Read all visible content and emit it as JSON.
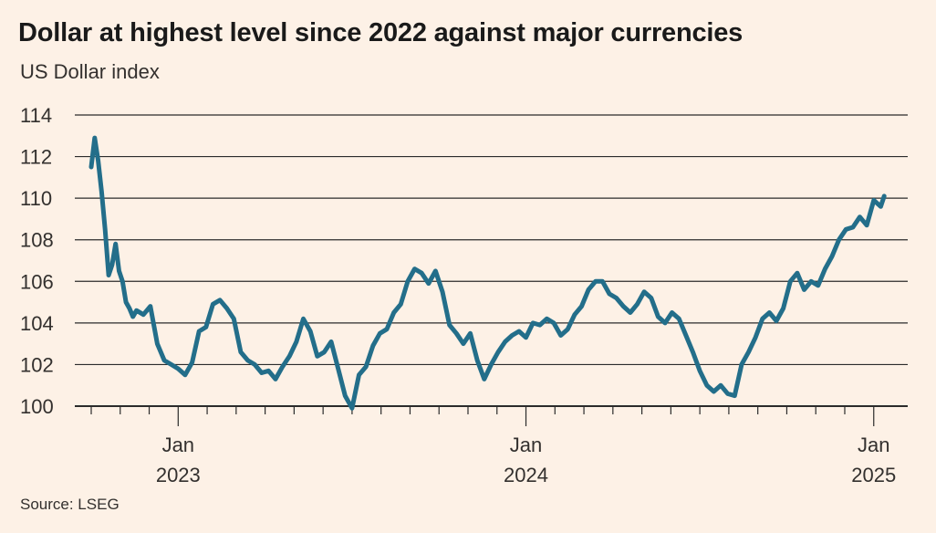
{
  "header": {
    "title": "Dollar at highest level since 2022 against major currencies",
    "subtitle": "US Dollar index"
  },
  "footer": {
    "source": "Source: LSEG"
  },
  "colors": {
    "line": "#236e8a",
    "grid": "#2b2b2b",
    "background": "#fdf1e6",
    "text": "#33302e"
  },
  "chart_data": {
    "type": "line",
    "title": "Dollar at highest level since 2022 against major currencies",
    "subtitle": "US Dollar index",
    "xlabel": "",
    "ylabel": "US Dollar index",
    "ylim": [
      100,
      114
    ],
    "yticks": [
      100,
      102,
      104,
      106,
      108,
      110,
      112,
      114
    ],
    "ytick_labels": [
      "100",
      "102",
      "104",
      "106",
      "108",
      "110",
      "112",
      "114"
    ],
    "xlim": [
      2022.75,
      2025.04
    ],
    "xticks_major": [
      {
        "x": 2023.0,
        "month": "Jan",
        "year": "2023"
      },
      {
        "x": 2024.0,
        "month": "Jan",
        "year": "2024"
      },
      {
        "x": 2025.0,
        "month": "Jan",
        "year": "2025"
      }
    ],
    "grid": true,
    "legend": "none",
    "series": [
      {
        "name": "US Dollar index",
        "x": [
          2022.75,
          2022.76,
          2022.77,
          2022.78,
          2022.79,
          2022.8,
          2022.81,
          2022.82,
          2022.83,
          2022.84,
          2022.85,
          2022.86,
          2022.87,
          2022.88,
          2022.9,
          2022.92,
          2022.94,
          2022.96,
          2022.98,
          2023.0,
          2023.02,
          2023.04,
          2023.06,
          2023.08,
          2023.1,
          2023.12,
          2023.14,
          2023.16,
          2023.18,
          2023.2,
          2023.22,
          2023.24,
          2023.26,
          2023.28,
          2023.3,
          2023.32,
          2023.34,
          2023.36,
          2023.38,
          2023.4,
          2023.42,
          2023.44,
          2023.46,
          2023.48,
          2023.5,
          2023.52,
          2023.54,
          2023.56,
          2023.58,
          2023.6,
          2023.62,
          2023.64,
          2023.66,
          2023.68,
          2023.7,
          2023.72,
          2023.74,
          2023.76,
          2023.78,
          2023.8,
          2023.82,
          2023.84,
          2023.86,
          2023.88,
          2023.9,
          2023.92,
          2023.94,
          2023.96,
          2023.98,
          2024.0,
          2024.02,
          2024.04,
          2024.06,
          2024.08,
          2024.1,
          2024.12,
          2024.14,
          2024.16,
          2024.18,
          2024.2,
          2024.22,
          2024.24,
          2024.26,
          2024.28,
          2024.3,
          2024.32,
          2024.34,
          2024.36,
          2024.38,
          2024.4,
          2024.42,
          2024.44,
          2024.46,
          2024.48,
          2024.5,
          2024.52,
          2024.54,
          2024.56,
          2024.58,
          2024.6,
          2024.62,
          2024.64,
          2024.66,
          2024.68,
          2024.7,
          2024.72,
          2024.74,
          2024.76,
          2024.78,
          2024.8,
          2024.82,
          2024.84,
          2024.86,
          2024.88,
          2024.9,
          2024.92,
          2024.94,
          2024.96,
          2024.98,
          2025.0,
          2025.02,
          2025.03
        ],
        "values": [
          111.5,
          112.9,
          111.8,
          110.3,
          108.5,
          106.3,
          106.8,
          107.8,
          106.5,
          106.0,
          105.0,
          104.7,
          104.3,
          104.6,
          104.4,
          104.8,
          103.0,
          102.2,
          102.0,
          101.8,
          101.5,
          102.1,
          103.6,
          103.8,
          104.9,
          105.1,
          104.7,
          104.2,
          102.6,
          102.2,
          102.0,
          101.6,
          101.7,
          101.3,
          101.9,
          102.4,
          103.1,
          104.2,
          103.6,
          102.4,
          102.6,
          103.1,
          101.8,
          100.5,
          99.9,
          101.5,
          101.9,
          102.9,
          103.5,
          103.7,
          104.5,
          104.9,
          106.0,
          106.6,
          106.4,
          105.9,
          106.5,
          105.5,
          103.9,
          103.5,
          103.0,
          103.5,
          102.2,
          101.3,
          102.0,
          102.6,
          103.1,
          103.4,
          103.6,
          103.3,
          104.0,
          103.9,
          104.2,
          104.0,
          103.4,
          103.7,
          104.4,
          104.8,
          105.6,
          106.0,
          106.0,
          105.4,
          105.2,
          104.8,
          104.5,
          104.9,
          105.5,
          105.2,
          104.3,
          104.0,
          104.5,
          104.2,
          103.4,
          102.6,
          101.7,
          101.0,
          100.7,
          101.0,
          100.6,
          100.5,
          102.0,
          102.6,
          103.3,
          104.2,
          104.5,
          104.1,
          104.7,
          106.0,
          106.4,
          105.6,
          106.0,
          105.8,
          106.6,
          107.2,
          108.0,
          108.5,
          108.6,
          109.1,
          108.7,
          109.9,
          109.6,
          110.1
        ]
      }
    ]
  }
}
